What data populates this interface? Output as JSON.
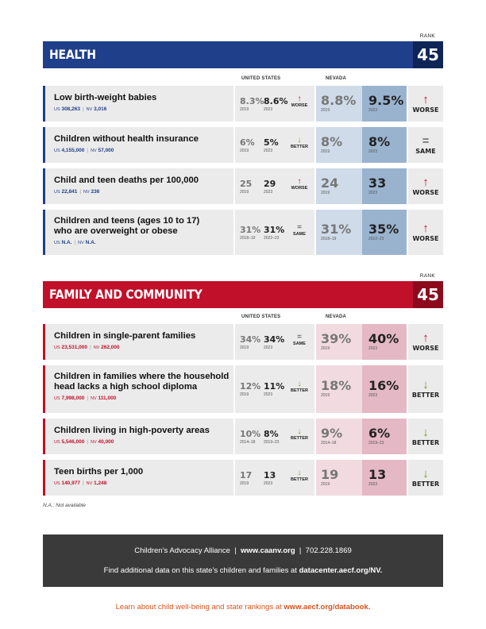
{
  "health": {
    "title": "HEALTH",
    "rank_label": "RANK",
    "rank": "45",
    "col_us": "UNITED STATES",
    "col_nv": "NEVADA",
    "rows": [
      {
        "name_lines": [
          "Low birth-weight babies"
        ],
        "us_count": "308,263",
        "nv_count": "3,016",
        "us_v1": "8.3%",
        "us_y1": "2019",
        "us_v2": "8.6%",
        "us_y2": "2023",
        "us_trend": "WORSE",
        "us_arrow": "↑",
        "nv_v1": "8.8%",
        "nv_y1": "2019",
        "nv_v2": "9.5%",
        "nv_y2": "2023",
        "nv_trend": "WORSE",
        "nv_arrow": "↑"
      },
      {
        "name_lines": [
          "Children without health insurance"
        ],
        "us_count": "4,155,000",
        "nv_count": "57,000",
        "us_v1": "6%",
        "us_y1": "2019",
        "us_v2": "5%",
        "us_y2": "2023",
        "us_trend": "BETTER",
        "us_arrow": "↓",
        "nv_v1": "8%",
        "nv_y1": "2019",
        "nv_v2": "8%",
        "nv_y2": "2023",
        "nv_trend": "SAME",
        "nv_arrow": "="
      },
      {
        "name_lines": [
          "Child and teen deaths per 100,000"
        ],
        "us_count": "22,841",
        "nv_count": "236",
        "us_v1": "25",
        "us_y1": "2019",
        "us_v2": "29",
        "us_y2": "2023",
        "us_trend": "WORSE",
        "us_arrow": "↑",
        "nv_v1": "24",
        "nv_y1": "2019",
        "nv_v2": "33",
        "nv_y2": "2023",
        "nv_trend": "WORSE",
        "nv_arrow": "↑"
      },
      {
        "name_lines": [
          "Children and teens (ages 10 to 17)",
          "who are overweight or obese"
        ],
        "us_count": "N.A.",
        "nv_count": "N.A.",
        "us_v1": "31%",
        "us_y1": "2018–19",
        "us_v2": "31%",
        "us_y2": "2022–23",
        "us_trend": "SAME",
        "us_arrow": "=",
        "nv_v1": "31%",
        "nv_y1": "2018–19",
        "nv_v2": "35%",
        "nv_y2": "2022–23",
        "nv_trend": "WORSE",
        "nv_arrow": "↑"
      }
    ]
  },
  "family": {
    "title": "FAMILY AND COMMUNITY",
    "rank_label": "RANK",
    "rank": "45",
    "col_us": "UNITED STATES",
    "col_nv": "NEVADA",
    "rows": [
      {
        "name_lines": [
          "Children in single-parent families"
        ],
        "us_count": "23,531,000",
        "nv_count": "262,000",
        "us_v1": "34%",
        "us_y1": "2019",
        "us_v2": "34%",
        "us_y2": "2023",
        "us_trend": "SAME",
        "us_arrow": "=",
        "nv_v1": "39%",
        "nv_y1": "2019",
        "nv_v2": "40%",
        "nv_y2": "2023",
        "nv_trend": "WORSE",
        "nv_arrow": "↑"
      },
      {
        "name_lines": [
          "Children in families where the household",
          "head lacks a high school diploma"
        ],
        "us_count": "7,998,000",
        "nv_count": "111,000",
        "us_v1": "12%",
        "us_y1": "2019",
        "us_v2": "11%",
        "us_y2": "2023",
        "us_trend": "BETTER",
        "us_arrow": "↓",
        "nv_v1": "18%",
        "nv_y1": "2019",
        "nv_v2": "16%",
        "nv_y2": "2023",
        "nv_trend": "BETTER",
        "nv_arrow": "↓"
      },
      {
        "name_lines": [
          "Children living in high-poverty areas"
        ],
        "us_count": "5,546,000",
        "nv_count": "40,000",
        "us_v1": "10%",
        "us_y1": "2014–18",
        "us_v2": "8%",
        "us_y2": "2019–23",
        "us_trend": "BETTER",
        "us_arrow": "↓",
        "nv_v1": "9%",
        "nv_y1": "2014–18",
        "nv_v2": "6%",
        "nv_y2": "2019–23",
        "nv_trend": "BETTER",
        "nv_arrow": "↓"
      },
      {
        "name_lines": [
          "Teen births per 1,000"
        ],
        "us_count": "140,977",
        "nv_count": "1,248",
        "us_v1": "17",
        "us_y1": "2019",
        "us_v2": "13",
        "us_y2": "2023",
        "us_trend": "BETTER",
        "us_arrow": "↓",
        "nv_v1": "19",
        "nv_y1": "2019",
        "nv_v2": "13",
        "nv_y2": "2023",
        "nv_trend": "BETTER",
        "nv_arrow": "↓"
      }
    ]
  },
  "count_prefix_us": "US",
  "count_prefix_nv": "NV",
  "note": "N.A.: Not available",
  "footer": {
    "org": "Children’s Advocacy Alliance",
    "site": "www.caanv.org",
    "phone": "702.228.1869",
    "line2_pre": "Find additional data on this state’s children and families at ",
    "line2_link": "datacenter.aecf.org/NV."
  },
  "learn": {
    "pre": "Learn about child well-being and state rankings at ",
    "link": "www.aecf.org/databook."
  },
  "colors": {
    "health": "#1f3f8a",
    "family": "#c0102a",
    "worse": "#c0102a",
    "better": "#6f9a2a"
  }
}
